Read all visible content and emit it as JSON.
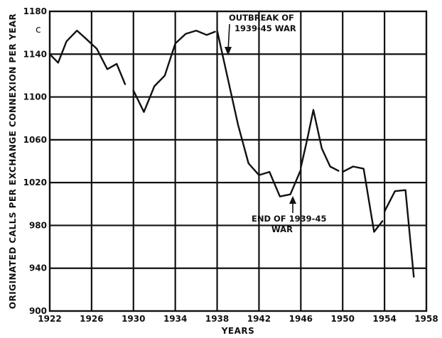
{
  "chart_data": {
    "type": "line",
    "xlabel": "YEARS",
    "ylabel": "ORIGINATED CALLS PER EXCHANGE CONNEXION PER YEAR",
    "xlim": [
      1922,
      1958
    ],
    "ylim": [
      900,
      1180
    ],
    "x_ticks": [
      1922,
      1926,
      1930,
      1934,
      1938,
      1942,
      1946,
      1950,
      1954,
      1958
    ],
    "y_ticks": [
      900,
      940,
      980,
      1020,
      1060,
      1100,
      1140,
      1180
    ],
    "grid": true,
    "series": [
      {
        "segments": [
          [
            [
              1922,
              1140
            ],
            [
              1922.8,
              1132
            ],
            [
              1923.6,
              1152
            ],
            [
              1924.6,
              1162
            ],
            [
              1925.4,
              1155
            ],
            [
              1926.5,
              1145
            ],
            [
              1927.5,
              1126
            ],
            [
              1928.4,
              1131
            ],
            [
              1929.2,
              1112
            ]
          ],
          [
            [
              1930,
              1106
            ],
            [
              1931,
              1086
            ],
            [
              1932,
              1110
            ],
            [
              1933,
              1120
            ],
            [
              1934,
              1150
            ],
            [
              1935,
              1159
            ],
            [
              1936,
              1162
            ],
            [
              1937,
              1158
            ],
            [
              1937.8,
              1161
            ]
          ],
          [
            [
              1938,
              1162
            ],
            [
              1939,
              1118
            ],
            [
              1940,
              1074
            ],
            [
              1941,
              1038
            ],
            [
              1942,
              1027
            ],
            [
              1943,
              1030
            ],
            [
              1944,
              1007
            ],
            [
              1945,
              1009
            ],
            [
              1946,
              1032
            ]
          ],
          [
            [
              1946,
              1034
            ],
            [
              1946.6,
              1060
            ],
            [
              1947.2,
              1088
            ],
            [
              1948,
              1052
            ],
            [
              1948.8,
              1035
            ],
            [
              1949.6,
              1031
            ]
          ],
          [
            [
              1950,
              1030
            ],
            [
              1951,
              1035
            ],
            [
              1952,
              1033
            ],
            [
              1953,
              974
            ],
            [
              1953.8,
              984
            ]
          ],
          [
            [
              1954,
              993
            ],
            [
              1955,
              1012
            ],
            [
              1956,
              1013
            ],
            [
              1956.8,
              932
            ]
          ]
        ]
      }
    ],
    "annotations": [
      {
        "line1": "OUTBREAK OF",
        "line2": "1939-45 WAR",
        "x": 1939,
        "y": 1120
      },
      {
        "line1": "END OF 1939-45",
        "line2": "WAR",
        "x": 1945,
        "y": 1009
      }
    ],
    "corner_mark": "c"
  }
}
